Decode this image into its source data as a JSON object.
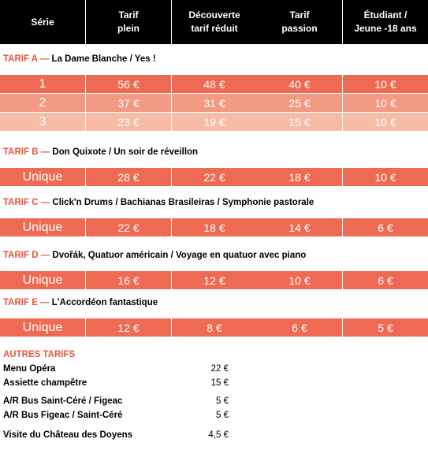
{
  "header": [
    "Série",
    [
      "Tarif",
      "plein"
    ],
    [
      "Découverte",
      "tarif réduit"
    ],
    [
      "Tarif",
      "passion"
    ],
    [
      "Étudiant /",
      "Jeune -18 ans"
    ]
  ],
  "sections": [
    {
      "label": "TARIF A —",
      "title": "La Dame Blanche / Yes !",
      "rows": [
        [
          "1",
          "56 €",
          "48 €",
          "40 €",
          "10 €"
        ],
        [
          "2",
          "37 €",
          "31 €",
          "25 €",
          "10 €"
        ],
        [
          "3",
          "23 €",
          "19 €",
          "15 €",
          "10 €"
        ]
      ]
    },
    {
      "label": "TARIF B —",
      "title": "Don Quixote / Un soir de réveillon",
      "rows": [
        [
          "Unique",
          "28 €",
          "22 €",
          "18 €",
          "10 €"
        ]
      ]
    },
    {
      "label": "TARIF C —",
      "title": "Click'n Drums / Bachianas Brasileiras / Symphonie pastorale",
      "rows": [
        [
          "Unique",
          "22 €",
          "18 €",
          "14 €",
          "6 €"
        ]
      ]
    },
    {
      "label": "TARIF D —",
      "title": "Dvořák, Quatuor américain / Voyage en quatuor avec piano",
      "rows": [
        [
          "Unique",
          "16 €",
          "12 €",
          "10 €",
          "6 €"
        ]
      ]
    },
    {
      "label": "TARIF E —",
      "title": "L'Accordéon fantastique",
      "rows": [
        [
          "Unique",
          "12 €",
          "8 €",
          "6 €",
          "5 €"
        ]
      ]
    }
  ],
  "other": {
    "title": "AUTRES TARIFS",
    "groups": [
      [
        {
          "name": "Menu Opéra",
          "price": "22 €"
        },
        {
          "name": "Assiette champêtre",
          "price": "15 €"
        }
      ],
      [
        {
          "name": "A/R Bus Saint-Céré / Figeac",
          "price": "5 €"
        },
        {
          "name": "A/R Bus Figeac / Saint-Céré",
          "price": "5 €"
        }
      ],
      [
        {
          "name": "Visite du Château des Doyens",
          "price": "4,5 €"
        }
      ]
    ]
  }
}
